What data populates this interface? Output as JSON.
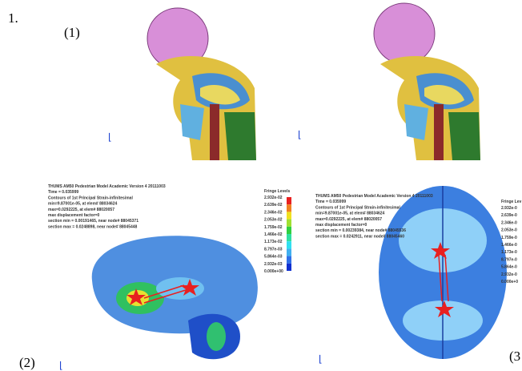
{
  "figure": {
    "number": "1.",
    "label_1": "(1)",
    "label_2": "(2)",
    "label_3": "(3",
    "panels": [
      {
        "lines": [
          "THUMS AM50 Pedestrian Model Academic Version 4 20111003",
          "Time =  0.035999",
          "Contours of 1st Principal Strain-infinitesimal",
          "min=9.87001e-05, at elem# 88034624",
          "max=0.0292225, at elem# 88020057",
          "max displacement factor=0",
          "section min = 0.00191465, near node# 88045371",
          "section max = 0.0248898, near node# 88045448"
        ],
        "fringe_title": "Fringe Levels",
        "fringe": [
          "2.932e-02",
          "2.639e-02",
          "2.346e-02",
          "2.053e-02",
          "1.759e-02",
          "1.466e-02",
          "1.173e-02",
          "8.797e-03",
          "5.864e-03",
          "2.932e-03",
          "0.000e+00"
        ]
      },
      {
        "lines": [
          "THUMS AM50 Pedestrian Model Academic Version 4 20111003",
          "Time =  0.035999",
          "Contours of 1st Principal Strain-infinitesimal",
          "min=9.87001e-05, at elem# 88034624",
          "max=0.0292225, at elem# 88020057",
          "max displacement factor=0",
          "section min = 0.00239384, near node# 88045536",
          "section max = 0.0242911, near node# 88045460"
        ],
        "fringe_title": "Fringe Lev",
        "fringe": [
          "2.932e-0",
          "2.639e-0",
          "2.346e-0",
          "2.053e-0",
          "1.759e-0",
          "1.466e-0",
          "1.173e-0",
          "8.797e-0",
          "5.864e-0",
          "2.932e-0",
          "0.000e+0"
        ]
      }
    ]
  }
}
